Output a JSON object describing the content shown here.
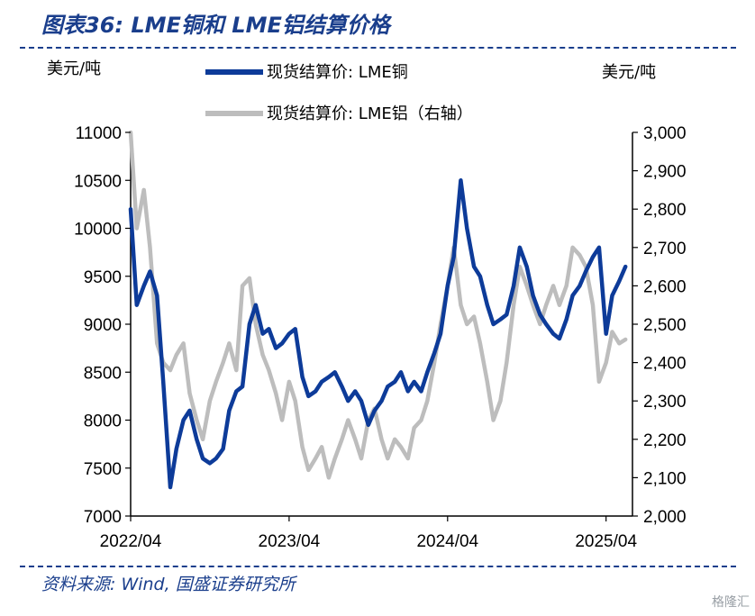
{
  "figure": {
    "title": "图表36:  LME铜和 LME铝结算价格",
    "source": "资料来源:  Wind,  国盛证券研究所",
    "watermark": "格隆汇"
  },
  "colors": {
    "copper": "#0d3b99",
    "aluminum": "#bdbdbd",
    "accent": "#1a3e8c"
  },
  "chart_data": {
    "type": "line",
    "y_left_label": "美元/吨",
    "y_right_label": "美元/吨",
    "y_left_lim": [
      7000,
      11000
    ],
    "y_right_lim": [
      2000,
      3000
    ],
    "y_left_ticks": [
      "11000",
      "10500",
      "10000",
      "9500",
      "9000",
      "8500",
      "8000",
      "7500",
      "7000"
    ],
    "y_right_ticks": [
      "3,000",
      "2,900",
      "2,800",
      "2,700",
      "2,600",
      "2,500",
      "2,400",
      "2,300",
      "2,200",
      "2,100",
      "2,000"
    ],
    "x_lim": [
      "2022-04",
      "2025-06"
    ],
    "x_ticks": [
      "2022/04",
      "2023/04",
      "2024/04",
      "2025/04"
    ],
    "grid": false,
    "legend_position": "top",
    "series": [
      {
        "name": "现货结算价: LME铜",
        "axis": "left",
        "x": [
          "2022-04",
          "2022-04-15",
          "2022-05",
          "2022-05-15",
          "2022-06",
          "2022-06-15",
          "2022-07",
          "2022-07-15",
          "2022-08",
          "2022-08-15",
          "2022-09",
          "2022-09-15",
          "2022-10",
          "2022-10-15",
          "2022-11",
          "2022-11-15",
          "2022-12",
          "2022-12-15",
          "2023-01",
          "2023-01-15",
          "2023-02",
          "2023-02-15",
          "2023-03",
          "2023-03-15",
          "2023-04",
          "2023-04-15",
          "2023-05",
          "2023-05-15",
          "2023-06",
          "2023-06-15",
          "2023-07",
          "2023-07-15",
          "2023-08",
          "2023-08-15",
          "2023-09",
          "2023-09-15",
          "2023-10",
          "2023-10-15",
          "2023-11",
          "2023-11-15",
          "2023-12",
          "2023-12-15",
          "2024-01",
          "2024-01-15",
          "2024-02",
          "2024-02-15",
          "2024-03",
          "2024-03-15",
          "2024-04",
          "2024-04-15",
          "2024-05",
          "2024-05-15",
          "2024-06",
          "2024-06-15",
          "2024-07",
          "2024-07-15",
          "2024-08",
          "2024-08-15",
          "2024-09",
          "2024-09-15",
          "2024-10",
          "2024-10-15",
          "2024-11",
          "2024-11-15",
          "2024-12",
          "2024-12-15",
          "2025-01",
          "2025-01-15",
          "2025-02",
          "2025-02-15",
          "2025-03",
          "2025-03-15",
          "2025-04",
          "2025-04-15",
          "2025-05",
          "2025-05-15"
        ],
        "values": [
          10200,
          9200,
          9400,
          9550,
          9300,
          8400,
          7300,
          7700,
          8000,
          8100,
          7800,
          7600,
          7550,
          7600,
          7700,
          8100,
          8300,
          8350,
          9000,
          9200,
          8900,
          8950,
          8750,
          8800,
          8900,
          8950,
          8450,
          8250,
          8300,
          8400,
          8450,
          8500,
          8350,
          8200,
          8300,
          8200,
          7950,
          8100,
          8200,
          8350,
          8400,
          8500,
          8300,
          8400,
          8300,
          8500,
          8700,
          8900,
          9400,
          9700,
          10500,
          10000,
          9600,
          9500,
          9200,
          9000,
          9050,
          9100,
          9400,
          9800,
          9600,
          9300,
          9100,
          9000,
          8900,
          8850,
          9050,
          9300,
          9400,
          9550,
          9700,
          9800,
          8900,
          9300,
          9450,
          9600
        ]
      },
      {
        "name": "现货结算价: LME铝（右轴）",
        "axis": "right",
        "x": [
          "2022-04",
          "2022-04-15",
          "2022-05",
          "2022-05-15",
          "2022-06",
          "2022-06-15",
          "2022-07",
          "2022-07-15",
          "2022-08",
          "2022-08-15",
          "2022-09",
          "2022-09-15",
          "2022-10",
          "2022-10-15",
          "2022-11",
          "2022-11-15",
          "2022-12",
          "2022-12-15",
          "2023-01",
          "2023-01-15",
          "2023-02",
          "2023-02-15",
          "2023-03",
          "2023-03-15",
          "2023-04",
          "2023-04-15",
          "2023-05",
          "2023-05-15",
          "2023-06",
          "2023-06-15",
          "2023-07",
          "2023-07-15",
          "2023-08",
          "2023-08-15",
          "2023-09",
          "2023-09-15",
          "2023-10",
          "2023-10-15",
          "2023-11",
          "2023-11-15",
          "2023-12",
          "2023-12-15",
          "2024-01",
          "2024-01-15",
          "2024-02",
          "2024-02-15",
          "2024-03",
          "2024-03-15",
          "2024-04",
          "2024-04-15",
          "2024-05",
          "2024-05-15",
          "2024-06",
          "2024-06-15",
          "2024-07",
          "2024-07-15",
          "2024-08",
          "2024-08-15",
          "2024-09",
          "2024-09-15",
          "2024-10",
          "2024-10-15",
          "2024-11",
          "2024-11-15",
          "2024-12",
          "2024-12-15",
          "2025-01",
          "2025-01-15",
          "2025-02",
          "2025-02-15",
          "2025-03",
          "2025-03-15",
          "2025-04",
          "2025-04-15",
          "2025-05",
          "2025-05-15"
        ],
        "values": [
          3000,
          2750,
          2850,
          2700,
          2450,
          2400,
          2380,
          2420,
          2450,
          2320,
          2250,
          2200,
          2300,
          2350,
          2400,
          2450,
          2380,
          2600,
          2620,
          2500,
          2420,
          2380,
          2320,
          2250,
          2350,
          2300,
          2180,
          2120,
          2150,
          2180,
          2100,
          2150,
          2200,
          2250,
          2200,
          2150,
          2250,
          2280,
          2200,
          2150,
          2200,
          2180,
          2150,
          2230,
          2250,
          2300,
          2400,
          2500,
          2600,
          2700,
          2550,
          2500,
          2520,
          2450,
          2350,
          2250,
          2300,
          2400,
          2550,
          2650,
          2600,
          2550,
          2500,
          2550,
          2600,
          2550,
          2600,
          2700,
          2680,
          2650,
          2550,
          2350,
          2400,
          2480,
          2450,
          2460
        ]
      }
    ]
  }
}
